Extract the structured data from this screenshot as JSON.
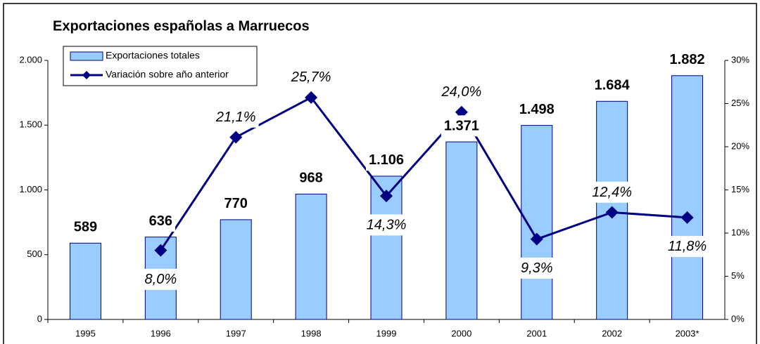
{
  "chart_data": {
    "type": "bar",
    "title": "Exportaciones españolas a Marruecos",
    "categories": [
      "1995",
      "1996",
      "1997",
      "1998",
      "1999",
      "2000",
      "2001",
      "2002",
      "2003*"
    ],
    "series": [
      {
        "name": "Exportaciones totales",
        "type": "bar",
        "color": "#99ccff",
        "values": [
          589,
          636,
          770,
          968,
          1106,
          1371,
          1498,
          1684,
          1882
        ],
        "value_labels": [
          "589",
          "636",
          "770",
          "968",
          "1.106",
          "1.371",
          "1.498",
          "1.684",
          "1.882"
        ]
      },
      {
        "name": "Variación sobre año anterior",
        "type": "line",
        "color": "#000080",
        "axis": "y2",
        "values": [
          null,
          8.0,
          21.1,
          25.7,
          14.3,
          24.0,
          9.3,
          12.4,
          11.8
        ],
        "value_labels": [
          null,
          "8,0%",
          "21,1%",
          "25,7%",
          "14,3%",
          "24,0%",
          "9,3%",
          "12,4%",
          "11,8%"
        ]
      }
    ],
    "ylim": [
      0,
      2000
    ],
    "yticks": [
      0,
      500,
      {
        "value": 1000,
        "label": "1.000"
      },
      {
        "value": 1500,
        "label": "1.500"
      },
      {
        "value": 2000,
        "label": "2.000"
      }
    ],
    "y2lim": [
      0,
      30
    ],
    "y2ticks": [
      {
        "value": 0,
        "label": "0%"
      },
      {
        "value": 5,
        "label": "5%"
      },
      {
        "value": 10,
        "label": "10%"
      },
      {
        "value": 15,
        "label": "15%"
      },
      {
        "value": 20,
        "label": "20%"
      },
      {
        "value": 25,
        "label": "25%"
      },
      {
        "value": 30,
        "label": "30%"
      }
    ],
    "legend": "top-left"
  }
}
